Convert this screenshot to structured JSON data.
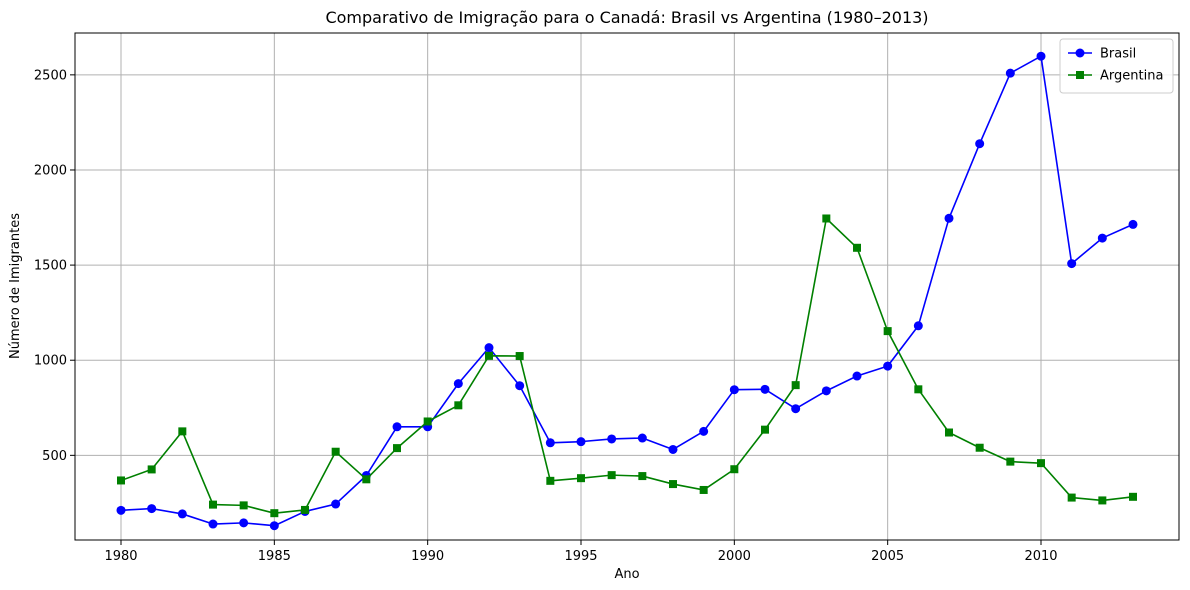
{
  "chart_data": {
    "type": "line",
    "title": "Comparativo de Imigração para o Canadá: Brasil vs Argentina (1980–2013)",
    "xlabel": "Ano",
    "ylabel": "Número de Imigrantes",
    "xlim": [
      1978.5,
      2014.5
    ],
    "ylim": [
      55,
      2720
    ],
    "grid": true,
    "legend_position": "top-right",
    "x_ticks": [
      1980,
      1985,
      1990,
      1995,
      2000,
      2005,
      2010
    ],
    "y_ticks": [
      500,
      1000,
      1500,
      2000,
      2500
    ],
    "x": [
      1980,
      1981,
      1982,
      1983,
      1984,
      1985,
      1986,
      1987,
      1988,
      1989,
      1990,
      1991,
      1992,
      1993,
      1994,
      1995,
      1996,
      1997,
      1998,
      1999,
      2000,
      2001,
      2002,
      2003,
      2004,
      2005,
      2006,
      2007,
      2008,
      2009,
      2010,
      2011,
      2012,
      2013
    ],
    "series": [
      {
        "name": "Brasil",
        "color": "#0000ff",
        "marker": "circle",
        "values": [
          211,
          220,
          192,
          139,
          145,
          130,
          205,
          244,
          394,
          650,
          650,
          877,
          1066,
          866,
          566,
          572,
          586,
          591,
          531,
          626,
          845,
          847,
          745,
          839,
          917,
          969,
          1181,
          1746,
          2138,
          2509,
          2598,
          1508,
          1642,
          1714
        ]
      },
      {
        "name": "Argentina",
        "color": "#008000",
        "marker": "square",
        "values": [
          368,
          426,
          626,
          241,
          237,
          196,
          213,
          519,
          374,
          538,
          678,
          763,
          1023,
          1022,
          366,
          380,
          396,
          391,
          349,
          318,
          427,
          635,
          869,
          1745,
          1591,
          1153,
          847,
          620,
          540,
          467,
          459,
          278,
          263,
          282
        ]
      }
    ]
  }
}
